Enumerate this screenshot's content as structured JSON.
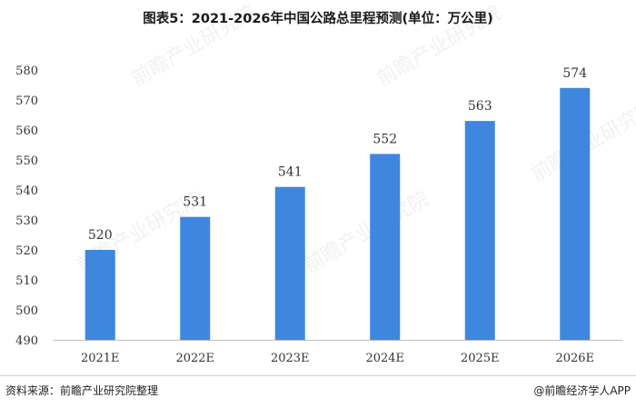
{
  "title": "图表5：2021-2026年中国公路总里程预测(单位：万公里)",
  "source": "资料来源：前瞻产业研究院整理",
  "brand": "@前瞻经济学人APP",
  "watermark": "前瞻产业研究院",
  "colors": {
    "bar": "#3f86de",
    "axis": "#bfbfbf",
    "text": "#333333"
  },
  "chart_data": {
    "type": "bar",
    "title": "图表5：2021-2026年中国公路总里程预测(单位：万公里)",
    "categories": [
      "2021E",
      "2022E",
      "2023E",
      "2024E",
      "2025E",
      "2026E"
    ],
    "values": [
      520,
      531,
      541,
      552,
      563,
      574
    ],
    "data_labels": [
      "520",
      "531",
      "541",
      "552",
      "563",
      "574"
    ],
    "ylim": [
      490,
      580
    ],
    "yticks": [
      490,
      500,
      510,
      520,
      530,
      540,
      550,
      560,
      570,
      580
    ],
    "xlabel": "",
    "ylabel": "",
    "grid": false,
    "legend": "none"
  }
}
